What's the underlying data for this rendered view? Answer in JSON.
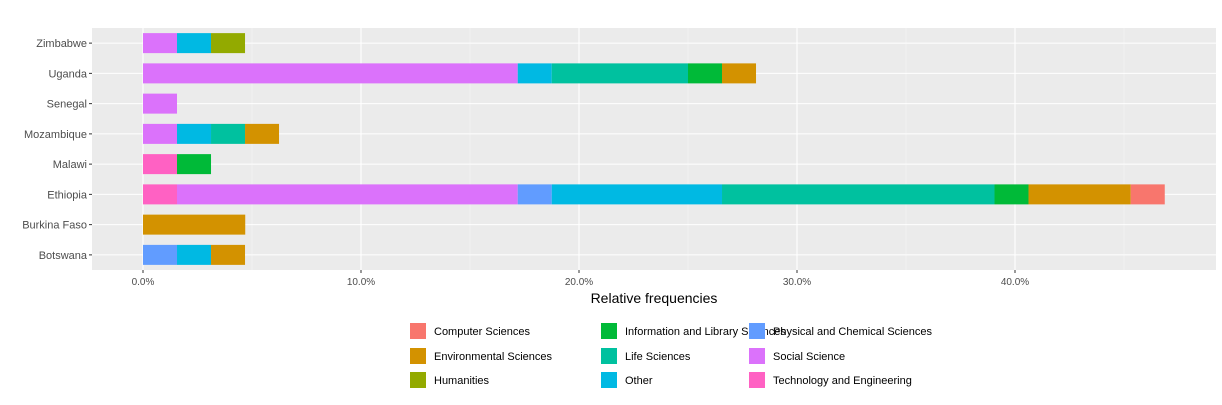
{
  "chart_data": {
    "type": "bar",
    "orientation": "horizontal",
    "stacked": true,
    "title": "",
    "xlabel": "Relative frequencies",
    "ylabel": "",
    "xlim": [
      0,
      48.7
    ],
    "x_ticks": [
      0,
      10,
      20,
      30,
      40
    ],
    "x_tick_labels": [
      "0.0%",
      "10.0%",
      "20.0%",
      "30.0%",
      "40.0%"
    ],
    "grid": true,
    "legend_position": "bottom",
    "categories": [
      "Botswana",
      "Burkina Faso",
      "Ethiopia",
      "Malawi",
      "Mozambique",
      "Senegal",
      "Uganda",
      "Zimbabwe"
    ],
    "series": [
      {
        "name": "Technology and Engineering",
        "color": "#FF61C3",
        "values": [
          0,
          0,
          1.56,
          1.56,
          0,
          0,
          0,
          0
        ]
      },
      {
        "name": "Social Science",
        "color": "#DB72FB",
        "values": [
          0,
          0,
          15.63,
          0,
          1.56,
          1.56,
          17.19,
          1.56
        ]
      },
      {
        "name": "Physical and Chemical Sciences",
        "color": "#619CFF",
        "values": [
          1.56,
          0,
          1.56,
          0,
          0,
          0,
          0,
          0
        ]
      },
      {
        "name": "Other",
        "color": "#00B9E3",
        "values": [
          1.56,
          0,
          7.81,
          0,
          1.56,
          0,
          1.56,
          1.56
        ]
      },
      {
        "name": "Life Sciences",
        "color": "#00C19F",
        "values": [
          0,
          0,
          12.5,
          0,
          1.56,
          0,
          6.25,
          0
        ]
      },
      {
        "name": "Information and Library Sciences",
        "color": "#00BA38",
        "values": [
          0,
          0,
          1.56,
          1.56,
          0,
          0,
          1.56,
          0
        ]
      },
      {
        "name": "Humanities",
        "color": "#93AA00",
        "values": [
          0,
          0,
          0,
          0,
          0,
          0,
          0,
          1.56
        ]
      },
      {
        "name": "Environmental Sciences",
        "color": "#D39200",
        "values": [
          1.56,
          4.69,
          4.69,
          0,
          1.56,
          0,
          1.56,
          0
        ]
      },
      {
        "name": "Computer Sciences",
        "color": "#F8766D",
        "values": [
          0,
          0,
          1.56,
          0,
          0,
          0,
          0,
          0
        ]
      }
    ],
    "legend_entries": [
      {
        "label": "Computer Sciences",
        "color": "#F8766D"
      },
      {
        "label": "Environmental Sciences",
        "color": "#D39200"
      },
      {
        "label": "Humanities",
        "color": "#93AA00"
      },
      {
        "label": "Information and Library Sciences",
        "color": "#00BA38"
      },
      {
        "label": "Life Sciences",
        "color": "#00C19F"
      },
      {
        "label": "Other",
        "color": "#00B9E3"
      },
      {
        "label": "Physical and Chemical Sciences",
        "color": "#619CFF"
      },
      {
        "label": "Social Science",
        "color": "#DB72FB"
      },
      {
        "label": "Technology and Engineering",
        "color": "#FF61C3"
      }
    ]
  }
}
